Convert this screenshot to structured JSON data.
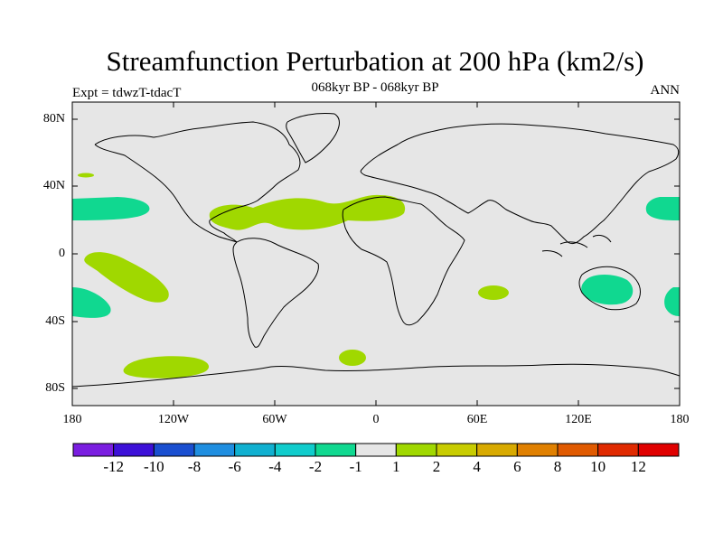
{
  "title": "Streamfunction Perturbation at 200 hPa (km2/s)",
  "subtitle": "068kyr BP - 068kyr BP",
  "left_label": "Expt = tdwzT-tdacT",
  "right_label": "ANN",
  "lat_ticks": [
    "80N",
    "40N",
    "0",
    "40S",
    "80S"
  ],
  "lon_ticks": [
    "180",
    "120W",
    "60W",
    "0",
    "60E",
    "120E",
    "180"
  ],
  "colorbar": {
    "colors": [
      "#7a1ee0",
      "#3d10d8",
      "#1a4fd0",
      "#1f8ee0",
      "#10b0d0",
      "#10cccc",
      "#10d890",
      "#e6e6e6",
      "#a0d800",
      "#c8cc00",
      "#d8aa00",
      "#e08000",
      "#e05a00",
      "#e02a00",
      "#e00000"
    ],
    "labels": [
      "-12",
      "-10",
      "-8",
      "-6",
      "-4",
      "-2",
      "-1",
      "1",
      "2",
      "4",
      "6",
      "8",
      "10",
      "12"
    ]
  },
  "map": {
    "background_color": "#e6e6e6",
    "positive_color": "#a0d800",
    "negative_color": "#10d890"
  }
}
